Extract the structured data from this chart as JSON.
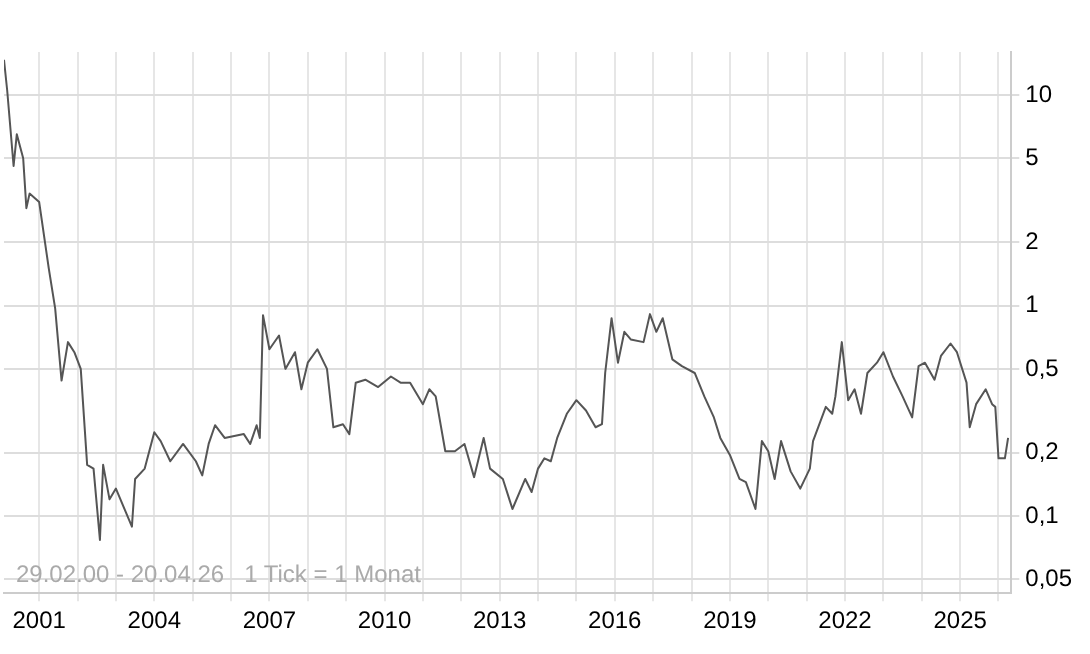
{
  "chart_data": {
    "type": "line",
    "x": [
      "2000-02",
      "2000-03",
      "2000-05",
      "2000-06",
      "2000-08",
      "2000-09",
      "2000-10",
      "2001-01",
      "2001-04",
      "2001-06",
      "2001-08",
      "2001-10",
      "2001-12",
      "2002-02",
      "2002-04",
      "2002-06",
      "2002-08",
      "2002-09",
      "2002-11",
      "2003-01",
      "2003-06",
      "2003-07",
      "2003-10",
      "2004-01",
      "2004-03",
      "2004-06",
      "2004-10",
      "2005-02",
      "2005-04",
      "2005-06",
      "2005-08",
      "2005-11",
      "2006-05",
      "2006-07",
      "2006-09",
      "2006-10",
      "2006-11",
      "2007-01",
      "2007-04",
      "2007-06",
      "2007-09",
      "2007-11",
      "2008-01",
      "2008-04",
      "2008-07",
      "2008-09",
      "2008-12",
      "2009-02",
      "2009-04",
      "2009-07",
      "2009-11",
      "2010-03",
      "2010-06",
      "2010-09",
      "2011-01",
      "2011-03",
      "2011-05",
      "2011-08",
      "2011-11",
      "2012-02",
      "2012-05",
      "2012-08",
      "2012-10",
      "2013-02",
      "2013-05",
      "2013-09",
      "2013-11",
      "2014-01",
      "2014-03",
      "2014-05",
      "2014-07",
      "2014-10",
      "2015-01",
      "2015-04",
      "2015-07",
      "2015-09",
      "2015-10",
      "2015-12",
      "2016-02",
      "2016-04",
      "2016-06",
      "2016-10",
      "2016-12",
      "2017-02",
      "2017-04",
      "2017-07",
      "2017-10",
      "2018-02",
      "2018-05",
      "2018-08",
      "2018-10",
      "2019-01",
      "2019-04",
      "2019-06",
      "2019-09",
      "2019-11",
      "2020-01",
      "2020-03",
      "2020-05",
      "2020-08",
      "2020-11",
      "2021-02",
      "2021-03",
      "2021-07",
      "2021-09",
      "2021-10",
      "2021-12",
      "2022-02",
      "2022-04",
      "2022-06",
      "2022-08",
      "2022-11",
      "2023-01",
      "2023-04",
      "2023-07",
      "2023-10",
      "2023-12",
      "2024-02",
      "2024-05",
      "2024-07",
      "2024-10",
      "2024-12",
      "2025-03",
      "2025-04",
      "2025-06",
      "2025-09",
      "2025-11",
      "2025-12",
      "2026-01",
      "2026-03",
      "2026-04"
    ],
    "series": [
      {
        "color": "#555555",
        "values": [
          14.7,
          10.5,
          4.6,
          6.5,
          5.0,
          2.9,
          3.4,
          3.1,
          1.5,
          0.97,
          0.44,
          0.67,
          0.6,
          0.5,
          0.175,
          0.168,
          0.077,
          0.175,
          0.12,
          0.135,
          0.089,
          0.15,
          0.168,
          0.25,
          0.227,
          0.182,
          0.22,
          0.182,
          0.156,
          0.22,
          0.27,
          0.235,
          0.245,
          0.22,
          0.27,
          0.235,
          0.9,
          0.62,
          0.72,
          0.5,
          0.6,
          0.4,
          0.535,
          0.62,
          0.5,
          0.264,
          0.273,
          0.245,
          0.43,
          0.444,
          0.41,
          0.46,
          0.43,
          0.43,
          0.34,
          0.4,
          0.37,
          0.203,
          0.203,
          0.22,
          0.153,
          0.235,
          0.168,
          0.15,
          0.108,
          0.15,
          0.13,
          0.168,
          0.188,
          0.182,
          0.235,
          0.306,
          0.355,
          0.317,
          0.264,
          0.273,
          0.478,
          0.87,
          0.535,
          0.75,
          0.69,
          0.67,
          0.91,
          0.75,
          0.87,
          0.555,
          0.515,
          0.478,
          0.37,
          0.294,
          0.235,
          0.195,
          0.15,
          0.145,
          0.108,
          0.227,
          0.203,
          0.15,
          0.227,
          0.163,
          0.135,
          0.168,
          0.227,
          0.33,
          0.306,
          0.37,
          0.67,
          0.355,
          0.4,
          0.306,
          0.478,
          0.535,
          0.6,
          0.46,
          0.37,
          0.294,
          0.515,
          0.535,
          0.444,
          0.576,
          0.66,
          0.6,
          0.43,
          0.264,
          0.34,
          0.4,
          0.34,
          0.33,
          0.188,
          0.188,
          0.235
        ]
      }
    ],
    "xlim": [
      "2000-02",
      "2026-05"
    ],
    "xticks": [
      {
        "value": "2001-01",
        "label": "2001"
      },
      {
        "value": "2002-01",
        "label": null
      },
      {
        "value": "2003-01",
        "label": null
      },
      {
        "value": "2004-01",
        "label": "2004"
      },
      {
        "value": "2005-01",
        "label": null
      },
      {
        "value": "2006-01",
        "label": null
      },
      {
        "value": "2007-01",
        "label": "2007"
      },
      {
        "value": "2008-01",
        "label": null
      },
      {
        "value": "2009-01",
        "label": null
      },
      {
        "value": "2010-01",
        "label": "2010"
      },
      {
        "value": "2011-01",
        "label": null
      },
      {
        "value": "2012-01",
        "label": null
      },
      {
        "value": "2013-01",
        "label": "2013"
      },
      {
        "value": "2014-01",
        "label": null
      },
      {
        "value": "2015-01",
        "label": null
      },
      {
        "value": "2016-01",
        "label": "2016"
      },
      {
        "value": "2017-01",
        "label": null
      },
      {
        "value": "2018-01",
        "label": null
      },
      {
        "value": "2019-01",
        "label": "2019"
      },
      {
        "value": "2020-01",
        "label": null
      },
      {
        "value": "2021-01",
        "label": null
      },
      {
        "value": "2022-01",
        "label": "2022"
      },
      {
        "value": "2023-01",
        "label": null
      },
      {
        "value": "2024-01",
        "label": null
      },
      {
        "value": "2025-01",
        "label": "2025"
      },
      {
        "value": "2026-01",
        "label": null
      }
    ],
    "ylim": [
      0.043,
      16
    ],
    "yticks": [
      {
        "value": 0.05,
        "label": "0,05"
      },
      {
        "value": 0.1,
        "label": "0,1"
      },
      {
        "value": 0.2,
        "label": "0,2"
      },
      {
        "value": 0.5,
        "label": "0,5"
      },
      {
        "value": 1,
        "label": "1"
      },
      {
        "value": 2,
        "label": "2"
      },
      {
        "value": 5,
        "label": "5"
      },
      {
        "value": 10,
        "label": "10"
      }
    ],
    "log": "y",
    "grid": true,
    "line_style": "solid",
    "annotations": [
      "29.02.00 - 20.04.26   1 Tick = 1 Monat"
    ]
  }
}
